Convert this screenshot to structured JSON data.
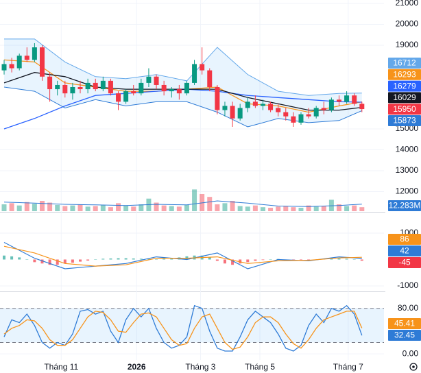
{
  "chart_data": {
    "type": "candlestick",
    "xlim": [
      -0.54,
      49.9
    ],
    "xticks": [
      {
        "value": 7.5,
        "label": "Tháng 11"
      },
      {
        "value": 17.4,
        "label": "2026"
      },
      {
        "value": 25.8,
        "label": "Tháng 3"
      },
      {
        "value": 33.6,
        "label": "Tháng 5"
      },
      {
        "value": 45.2,
        "label": "Tháng 7"
      }
    ],
    "ylim": [
      11066,
      21164
    ],
    "yticks": [
      21000,
      20000,
      19000,
      15000,
      14000,
      13000,
      12000
    ],
    "up_color": "#089981",
    "down_color": "#f23645",
    "open": [
      17800,
      18100,
      17900,
      18500,
      18300,
      18900,
      17500,
      16900,
      17100,
      16700,
      17000,
      16900,
      17200,
      16900,
      17300,
      16700,
      16300,
      16800,
      16700,
      17200,
      17500,
      17100,
      16800,
      16900,
      16700,
      17200,
      18100,
      17800,
      17000,
      15900,
      16100,
      15500,
      16000,
      16300,
      16100,
      16200,
      16000,
      15800,
      15600,
      15300,
      15700,
      15600,
      16000,
      15900,
      16400,
      16300,
      16600,
      16200
    ],
    "high": [
      18300,
      18400,
      18600,
      18900,
      19100,
      19000,
      17700,
      17300,
      17300,
      17200,
      17300,
      17400,
      17400,
      17500,
      17400,
      16800,
      16900,
      17100,
      17400,
      17900,
      17600,
      17300,
      17000,
      17100,
      17300,
      18300,
      18900,
      17900,
      17100,
      16300,
      16300,
      16200,
      16500,
      16600,
      16400,
      16300,
      16200,
      16000,
      15800,
      15800,
      16000,
      16100,
      16300,
      16500,
      16600,
      16800,
      16700,
      16300
    ],
    "low": [
      17600,
      17700,
      17800,
      18200,
      18200,
      17300,
      16300,
      16600,
      16500,
      16400,
      16700,
      16700,
      16800,
      16800,
      16600,
      15900,
      16200,
      16600,
      16600,
      17000,
      16900,
      16600,
      16500,
      16400,
      16600,
      17100,
      17600,
      16800,
      15700,
      15600,
      15100,
      15400,
      15800,
      16000,
      15900,
      15800,
      15600,
      15400,
      15100,
      15200,
      15500,
      15500,
      15700,
      15800,
      16100,
      16200,
      16100,
      15800
    ],
    "close": [
      18100,
      17900,
      18500,
      18300,
      18900,
      17500,
      16900,
      17100,
      16700,
      17000,
      16900,
      17200,
      16900,
      17300,
      16700,
      16300,
      16800,
      16700,
      17200,
      17500,
      17100,
      16800,
      16900,
      16700,
      17200,
      18100,
      17800,
      17000,
      15900,
      16100,
      15500,
      16000,
      16300,
      16100,
      16200,
      15900,
      15800,
      15600,
      15300,
      15700,
      15600,
      16000,
      15900,
      16400,
      16300,
      16600,
      16200,
      15950
    ],
    "band_fill": "rgba(33,150,243,0.1)",
    "overlays": [
      {
        "color": "#64a8ea",
        "x": [
          0,
          4,
          8,
          12,
          16,
          20,
          24,
          28,
          32,
          36,
          40,
          44,
          47
        ],
        "values": [
          19300,
          19300,
          18200,
          17500,
          17400,
          17600,
          17300,
          18900,
          17600,
          16800,
          16600,
          16700,
          16712
        ]
      },
      {
        "color": "#f7931a",
        "x": [
          0,
          4,
          8,
          12,
          16,
          20,
          24,
          28,
          32,
          36,
          40,
          44,
          47
        ],
        "values": [
          18300,
          18200,
          17200,
          17000,
          16800,
          16800,
          16900,
          17000,
          16200,
          16100,
          15800,
          16100,
          16293
        ]
      },
      {
        "color": "#2962ff",
        "x": [
          0,
          4,
          8,
          12,
          16,
          20,
          24,
          28,
          32,
          36,
          40,
          44,
          47
        ],
        "values": [
          15000,
          15500,
          16100,
          16600,
          16700,
          16800,
          16900,
          16800,
          16600,
          16500,
          16400,
          16300,
          16279
        ]
      },
      {
        "color": "#131722",
        "x": [
          0,
          4,
          8,
          12,
          16,
          20,
          24,
          28,
          32,
          36,
          40,
          44,
          47
        ],
        "values": [
          17200,
          17700,
          17500,
          17000,
          16900,
          16900,
          16900,
          16900,
          16500,
          16200,
          15900,
          15900,
          16029
        ]
      },
      {
        "color": "#2e7bd6",
        "x": [
          0,
          4,
          8,
          12,
          16,
          20,
          24,
          28,
          32,
          36,
          40,
          44,
          47
        ],
        "values": [
          17000,
          16800,
          16000,
          16400,
          16100,
          16300,
          16300,
          15800,
          15100,
          15500,
          15300,
          15400,
          15873
        ]
      }
    ],
    "volume": {
      "ylim": [
        0,
        48
      ],
      "values": [
        12,
        14,
        10,
        16,
        13,
        18,
        15,
        11,
        9,
        10,
        12,
        8,
        9,
        11,
        7,
        14,
        10,
        8,
        12,
        22,
        15,
        10,
        9,
        8,
        11,
        38,
        30,
        25,
        12,
        14,
        18,
        9,
        8,
        10,
        7,
        6,
        8,
        9,
        7,
        6,
        10,
        8,
        9,
        20,
        12,
        9,
        10,
        7
      ],
      "ma": {
        "color": "#2e7bd6",
        "x": [
          0,
          4,
          8,
          12,
          16,
          20,
          24,
          28,
          32,
          36,
          40,
          44,
          47
        ],
        "values": [
          16,
          14,
          12,
          11,
          10,
          12,
          11,
          18,
          14,
          9,
          8,
          10,
          12.283
        ],
        "value_labels": [
          null,
          null,
          null,
          null,
          null,
          null,
          null,
          null,
          null,
          null,
          null,
          null,
          "12.283M"
        ]
      }
    },
    "macd": {
      "ylim": [
        -1208,
        1779
      ],
      "yticks": [
        1000,
        -1000
      ],
      "macd": {
        "color": "#2e7bd6",
        "x": [
          0,
          4,
          8,
          12,
          16,
          20,
          24,
          28,
          32,
          36,
          40,
          44,
          47
        ],
        "values": [
          650,
          50,
          -350,
          -250,
          -150,
          100,
          0,
          250,
          -350,
          0,
          -50,
          100,
          42
        ]
      },
      "signal": {
        "color": "#f7931a",
        "x": [
          0,
          4,
          8,
          12,
          16,
          20,
          24,
          28,
          32,
          36,
          40,
          44,
          47
        ],
        "values": [
          500,
          250,
          -150,
          -250,
          -200,
          50,
          50,
          100,
          -150,
          -50,
          -30,
          60,
          86
        ]
      },
      "histogram": {
        "up_color": "#26a69a",
        "down_color": "#f23645",
        "values": [
          150,
          120,
          80,
          0,
          -100,
          -150,
          -200,
          -200,
          -150,
          -120,
          -80,
          -40,
          0,
          30,
          40,
          50,
          50,
          40,
          30,
          20,
          10,
          30,
          50,
          80,
          120,
          150,
          150,
          80,
          -50,
          -150,
          -200,
          -150,
          -100,
          -50,
          -20,
          0,
          20,
          0,
          -20,
          -30,
          -20,
          0,
          20,
          30,
          40,
          30,
          0,
          -45
        ]
      }
    },
    "stochastic": {
      "ylim": [
        -10.7,
        108.7
      ],
      "yticks": [
        {
          "value": 80,
          "label": "80.00"
        },
        {
          "value": 0,
          "label": "0.00"
        }
      ],
      "band": [
        20,
        80
      ],
      "band_color": "rgba(33,150,243,0.1)",
      "k": {
        "color": "#2e7bd6",
        "values": [
          30,
          60,
          55,
          70,
          50,
          20,
          10,
          20,
          15,
          35,
          75,
          78,
          70,
          75,
          40,
          20,
          60,
          80,
          65,
          80,
          45,
          20,
          10,
          15,
          30,
          85,
          80,
          40,
          10,
          5,
          5,
          30,
          60,
          75,
          65,
          55,
          35,
          10,
          5,
          15,
          50,
          70,
          55,
          80,
          75,
          85,
          70,
          32.45
        ]
      },
      "d": {
        "color": "#f7931a",
        "values": [
          35,
          45,
          50,
          60,
          58,
          45,
          25,
          15,
          15,
          25,
          45,
          65,
          75,
          73,
          60,
          40,
          38,
          55,
          70,
          72,
          65,
          45,
          25,
          15,
          18,
          45,
          65,
          70,
          45,
          20,
          8,
          12,
          30,
          55,
          65,
          65,
          55,
          35,
          18,
          10,
          25,
          45,
          60,
          65,
          70,
          75,
          75,
          45.41
        ]
      }
    }
  }
}
